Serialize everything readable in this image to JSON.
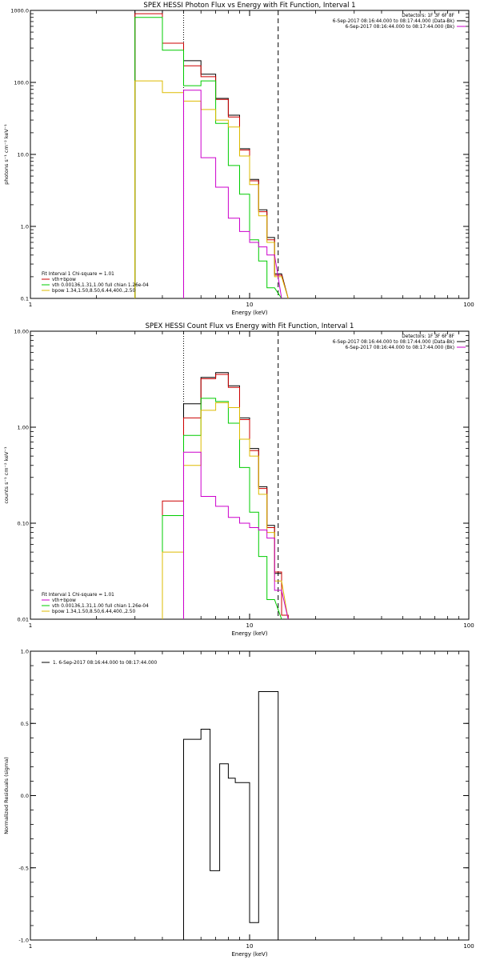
{
  "colors": {
    "data": "#000000",
    "total": "#cc0000",
    "vth": "#00cc00",
    "bpow": "#ddbb00",
    "thermal_part": "#cc00cc",
    "bk": "#cc00cc"
  },
  "chart_data": [
    {
      "id": "photon",
      "type": "line",
      "step": true,
      "title": "SPEX HESSI Photon Flux vs Energy with Fit Function, Interval 1",
      "xlabel": "Energy (keV)",
      "ylabel": "photons s⁻¹ cm⁻² keV⁻¹",
      "xscale": "log",
      "yscale": "log",
      "xlim": [
        1,
        100
      ],
      "ylim": [
        0.1,
        1000
      ],
      "xticks": [
        {
          "v": 1,
          "label": "1"
        },
        {
          "v": 10,
          "label": "10"
        },
        {
          "v": 100,
          "label": "100"
        }
      ],
      "yticks": [
        {
          "v": 0.1,
          "label": "0.1"
        },
        {
          "v": 1,
          "label": "1.0"
        },
        {
          "v": 10,
          "label": "10.0"
        },
        {
          "v": 100,
          "label": "100.0"
        },
        {
          "v": 1000,
          "label": "1000.0"
        }
      ],
      "edges": [
        3,
        4,
        5,
        6,
        7,
        8,
        9,
        10,
        11,
        12,
        13,
        14,
        15
      ],
      "dotted_line_x": 5,
      "dashed_line_x": 13.5,
      "legend_top": {
        "lines": [
          "Detectors: 1F 3F 6F 8F",
          "6-Sep-2017 08:16:44.000 to 08:17:44.000 (Data-Bk)",
          "6-Sep-2017 08:16:44.000 to 08:17:44.000 (Bk)"
        ],
        "series": [
          "data",
          "bk"
        ]
      },
      "legend_bottom": {
        "header": "Fit Interval 1   Chi-square = 1.01",
        "lines": [
          "vth+bpow",
          "vth 0.00136,1.31,1.00  full chian 1.26e-04",
          "bpow 1.34,1.50,8.50,6.44,400.,2.50"
        ],
        "series": [
          "total",
          "vth",
          "bpow"
        ]
      },
      "series": [
        {
          "key": "data",
          "values": [
            1000,
            350,
            200,
            130,
            60,
            35,
            12,
            4.5,
            1.7,
            0.7,
            0.22,
            null
          ]
        },
        {
          "key": "total",
          "values": [
            900,
            350,
            170,
            120,
            58,
            33,
            11.5,
            4.3,
            1.6,
            0.65,
            0.21,
            null
          ]
        },
        {
          "key": "vth",
          "values": [
            800,
            280,
            90,
            105,
            27,
            7,
            2.8,
            0.65,
            0.33,
            0.14,
            null,
            null
          ]
        },
        {
          "key": "bpow",
          "values": [
            105,
            72,
            55,
            42,
            30,
            24,
            9.5,
            3.8,
            1.4,
            0.6,
            0.2,
            null
          ]
        },
        {
          "key": "thermal_part",
          "values": [
            null,
            null,
            78,
            9,
            3.5,
            1.3,
            0.85,
            0.6,
            0.52,
            0.4,
            null,
            null
          ]
        }
      ]
    },
    {
      "id": "count",
      "type": "line",
      "step": true,
      "title": "SPEX HESSI Count Flux vs Energy with Fit Function, Interval 1",
      "xlabel": "Energy (keV)",
      "ylabel": "counts s⁻¹ cm⁻² keV⁻¹",
      "xscale": "log",
      "yscale": "log",
      "xlim": [
        1,
        100
      ],
      "ylim": [
        0.01,
        10
      ],
      "xticks": [
        {
          "v": 1,
          "label": "1"
        },
        {
          "v": 10,
          "label": "10"
        },
        {
          "v": 100,
          "label": "100"
        }
      ],
      "yticks": [
        {
          "v": 0.01,
          "label": "0.01"
        },
        {
          "v": 0.1,
          "label": "0.10"
        },
        {
          "v": 1,
          "label": "1.00"
        },
        {
          "v": 10,
          "label": "10.00"
        }
      ],
      "edges": [
        3,
        4,
        5,
        6,
        7,
        8,
        9,
        10,
        11,
        12,
        13,
        14,
        15
      ],
      "dotted_line_x": 5,
      "dashed_line_x": 13.5,
      "legend_top": {
        "lines": [
          "Detectors: 1F 3F 6F 8F",
          "6-Sep-2017 08:16:44.000 to 08:17:44.000 (Data-Bk)",
          "6-Sep-2017 08:16:44.000 to 08:17:44.000 (Bk)"
        ],
        "series": [
          "data",
          "bk"
        ]
      },
      "legend_bottom": {
        "header": "Fit Interval 1   Chi-square = 1.01",
        "lines": [
          "vth+bpow",
          "vth 0.00136,1.31,1.00  full chian 1.26e-04",
          "bpow 1.34,1.50,8.50,6.44,400.,2.50"
        ],
        "series": [
          "thermal_part",
          "vth",
          "bpow"
        ]
      },
      "series": [
        {
          "key": "data",
          "values": [
            null,
            null,
            1.75,
            3.3,
            3.7,
            2.7,
            1.25,
            0.6,
            0.24,
            0.095,
            0.03,
            0.011
          ]
        },
        {
          "key": "total",
          "values": [
            null,
            0.17,
            1.25,
            3.2,
            3.55,
            2.6,
            1.2,
            0.57,
            0.23,
            0.09,
            0.031,
            0.011
          ]
        },
        {
          "key": "vth",
          "values": [
            null,
            0.12,
            0.82,
            2.0,
            1.85,
            1.1,
            0.38,
            0.13,
            0.045,
            0.016,
            null,
            null
          ]
        },
        {
          "key": "bpow",
          "values": [
            null,
            0.05,
            0.4,
            1.5,
            1.8,
            1.6,
            0.75,
            0.5,
            0.2,
            0.08,
            0.025,
            null
          ]
        },
        {
          "key": "thermal_part",
          "values": [
            null,
            null,
            0.55,
            0.19,
            0.15,
            0.115,
            0.1,
            0.09,
            0.085,
            0.07,
            0.02,
            null
          ]
        }
      ]
    },
    {
      "id": "residuals",
      "type": "line",
      "step": true,
      "title": "",
      "xlabel": "Energy (keV)",
      "ylabel": "Normalized Residuals (sigma)",
      "xscale": "log",
      "yscale": "linear",
      "xlim": [
        1,
        100
      ],
      "ylim": [
        -1,
        1
      ],
      "xticks": [
        {
          "v": 1,
          "label": "1"
        },
        {
          "v": 10,
          "label": "10"
        },
        {
          "v": 100,
          "label": "100"
        }
      ],
      "yticks": [
        {
          "v": -1,
          "label": "-1.0"
        },
        {
          "v": -0.5,
          "label": "-0.5"
        },
        {
          "v": 0,
          "label": "0.0"
        },
        {
          "v": 0.5,
          "label": "0.5"
        },
        {
          "v": 1,
          "label": "1.0"
        }
      ],
      "edges": [
        5,
        6,
        6.6,
        7.3,
        8,
        8.6,
        9.3,
        10,
        11,
        12,
        13.5
      ],
      "legend_top_left": "1.  6-Sep-2017 08:16:44.000 to 08:17:44.000",
      "series": [
        {
          "key": "data",
          "values": [
            0.39,
            0.46,
            -0.52,
            0.22,
            0.12,
            0.09,
            0.09,
            -0.88,
            0.72,
            0.72
          ]
        }
      ]
    }
  ]
}
